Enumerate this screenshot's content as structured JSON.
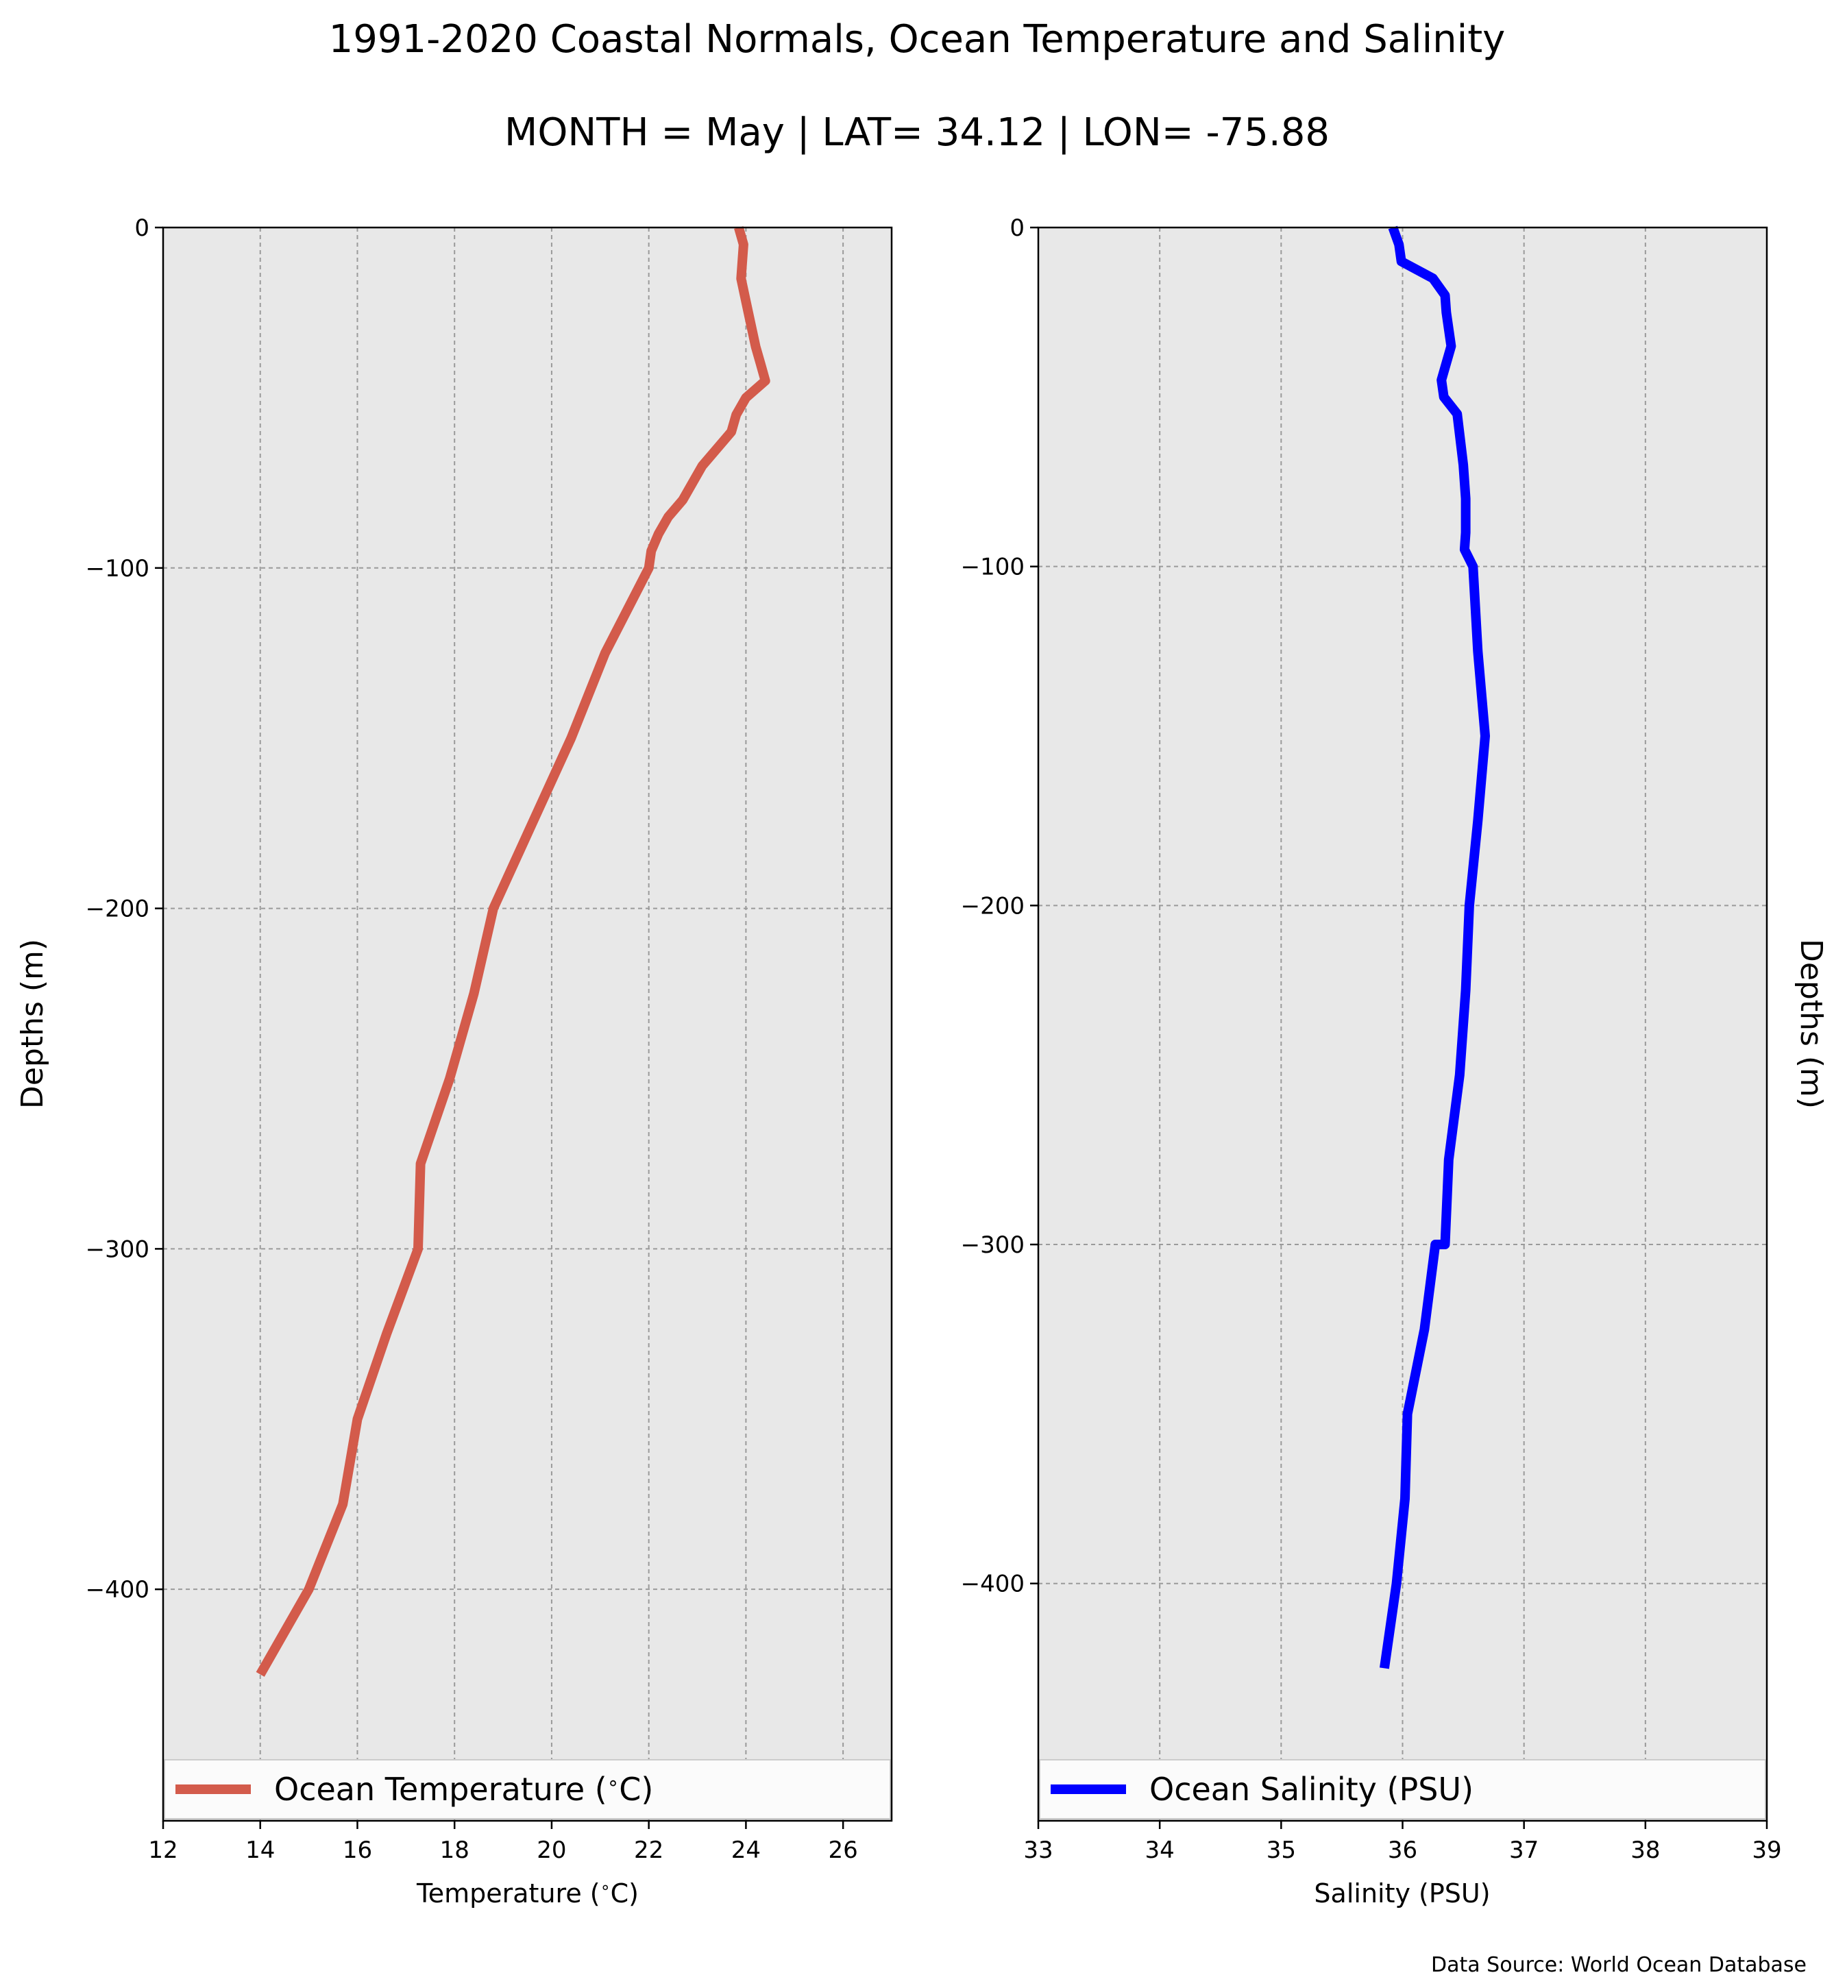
{
  "figure": {
    "title_line1": "1991-2020 Coastal Normals, Ocean Temperature and Salinity",
    "title_line2": "MONTH = May | LAT= 34.12 | LON= -75.88",
    "source": "Data Source: World Ocean Database"
  },
  "colors": {
    "panel_bg": "#e8e8e8",
    "grid": "#9a9a9a",
    "temperature": "#d35b4b",
    "salinity": "#0000ff"
  },
  "chart_data": [
    {
      "type": "line",
      "orientation": "vertical-profile",
      "xlabel": "Temperature ($^\\circ$C)",
      "xlabel_text": "Temperature (",
      "xlabel_unit": "C)",
      "ylabel": "Depths (m)",
      "xlim": [
        12,
        27
      ],
      "ylim": [
        -468,
        0
      ],
      "xticks": [
        12,
        14,
        16,
        18,
        20,
        22,
        24,
        26
      ],
      "yticks": [
        0,
        -100,
        -200,
        -300,
        -400
      ],
      "ytick_labels": [
        "0",
        "−100",
        "−200",
        "−300",
        "−400"
      ],
      "grid": true,
      "legend": "bottom",
      "series": [
        {
          "name": "Ocean Temperature (°C)",
          "name_text": "Ocean Temperature (",
          "name_unit": "C)",
          "x": [
            23.85,
            23.95,
            23.9,
            24.05,
            24.2,
            24.3,
            24.4,
            24.0,
            23.8,
            23.7,
            23.1,
            22.7,
            22.4,
            22.2,
            22.05,
            22.0,
            21.1,
            20.4,
            19.6,
            18.8,
            18.4,
            17.9,
            17.3,
            17.25,
            16.6,
            16.0,
            15.7,
            15.0,
            14.0
          ],
          "y": [
            0,
            -5,
            -15,
            -25,
            -35,
            -40,
            -45,
            -50,
            -55,
            -60,
            -70,
            -80,
            -85,
            -90,
            -95,
            -100,
            -125,
            -150,
            -175,
            -200,
            -225,
            -250,
            -275,
            -300,
            -325,
            -350,
            -375,
            -400,
            -425
          ]
        }
      ]
    },
    {
      "type": "line",
      "orientation": "vertical-profile",
      "xlabel": "Salinity (PSU)",
      "ylabel": "Depths (m)",
      "xlim": [
        33,
        39
      ],
      "ylim": [
        -470,
        0
      ],
      "xticks": [
        33,
        34,
        35,
        36,
        37,
        38,
        39
      ],
      "yticks": [
        0,
        -100,
        -200,
        -300,
        -400
      ],
      "ytick_labels": [
        "0",
        "−100",
        "−200",
        "−300",
        "−400"
      ],
      "grid": true,
      "legend": "bottom",
      "series": [
        {
          "name": "Ocean Salinity (PSU)",
          "x": [
            35.92,
            35.97,
            35.99,
            36.25,
            36.35,
            36.36,
            36.4,
            36.32,
            36.34,
            36.45,
            36.5,
            36.52,
            36.52,
            36.51,
            36.58,
            36.62,
            36.68,
            36.62,
            36.55,
            36.52,
            36.47,
            36.38,
            36.35,
            36.27,
            36.18,
            36.04,
            36.02,
            35.95,
            35.85
          ],
          "y": [
            0,
            -5,
            -10,
            -15,
            -20,
            -25,
            -35,
            -45,
            -50,
            -55,
            -70,
            -80,
            -90,
            -95,
            -100,
            -125,
            -150,
            -175,
            -200,
            -225,
            -250,
            -275,
            -300,
            -300,
            -325,
            -350,
            -375,
            -400,
            -425
          ]
        }
      ]
    }
  ]
}
